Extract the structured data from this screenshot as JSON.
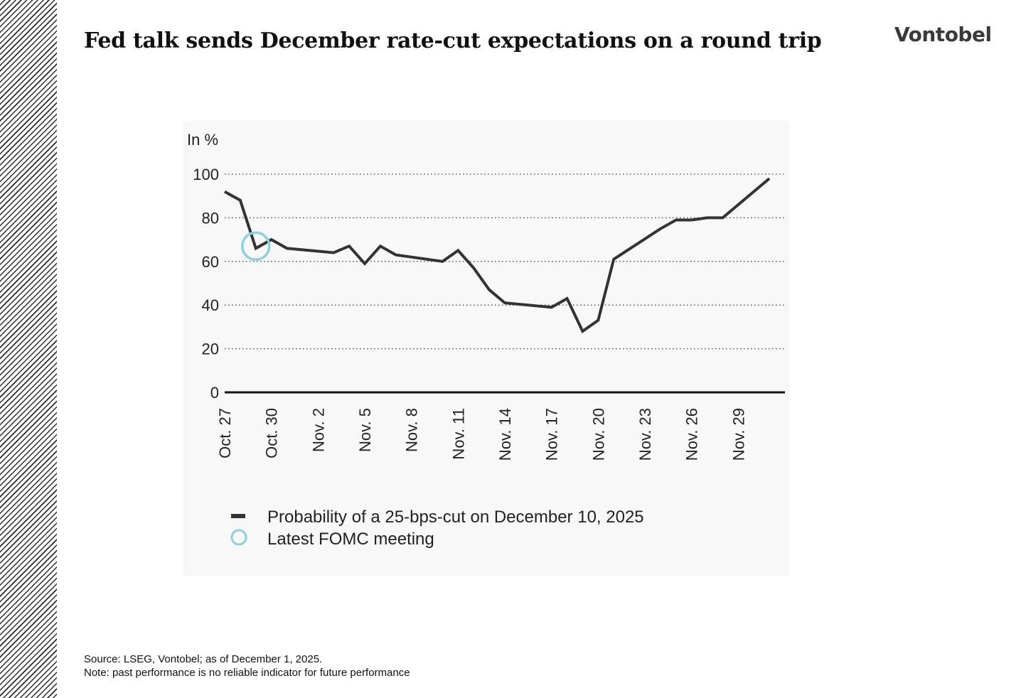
{
  "header": {
    "title": "Fed talk sends December rate-cut expectations on a round trip",
    "logo": "Vontobel"
  },
  "footer": {
    "source": "Source: LSEG, Vontobel; as of December 1, 2025.",
    "note": "Note: past performance is no reliable indicator for future performance"
  },
  "colors": {
    "line": "#333333",
    "marker": "#8fcfe0",
    "grid": "#555555",
    "axis": "#111111",
    "stripes": "#2a2a2a"
  },
  "chart_data": {
    "type": "line",
    "title": "",
    "xlabel": "",
    "ylabel": "In %",
    "ylim": [
      0,
      100
    ],
    "yticks": [
      0,
      20,
      40,
      60,
      80,
      100
    ],
    "x_range": [
      "2025-10-27",
      "2025-12-02"
    ],
    "xticks": [
      {
        "date": "2025-10-27",
        "label": "Oct. 27"
      },
      {
        "date": "2025-10-30",
        "label": "Oct. 30"
      },
      {
        "date": "2025-11-02",
        "label": "Nov. 2"
      },
      {
        "date": "2025-11-05",
        "label": "Nov. 5"
      },
      {
        "date": "2025-11-08",
        "label": "Nov. 8"
      },
      {
        "date": "2025-11-11",
        "label": "Nov. 11"
      },
      {
        "date": "2025-11-14",
        "label": "Nov. 14"
      },
      {
        "date": "2025-11-17",
        "label": "Nov. 17"
      },
      {
        "date": "2025-11-20",
        "label": "Nov. 20"
      },
      {
        "date": "2025-11-23",
        "label": "Nov. 23"
      },
      {
        "date": "2025-11-26",
        "label": "Nov. 26"
      },
      {
        "date": "2025-11-29",
        "label": "Nov. 29"
      }
    ],
    "grid": "horizontal dotted",
    "legend": "bottom-left",
    "series": [
      {
        "name": "Probability of a 25-bps-cut on December 10, 2025",
        "x": [
          "2025-10-27",
          "2025-10-28",
          "2025-10-29",
          "2025-10-30",
          "2025-10-31",
          "2025-11-03",
          "2025-11-04",
          "2025-11-05",
          "2025-11-06",
          "2025-11-07",
          "2025-11-10",
          "2025-11-11",
          "2025-11-12",
          "2025-11-13",
          "2025-11-14",
          "2025-11-17",
          "2025-11-18",
          "2025-11-19",
          "2025-11-20",
          "2025-11-21",
          "2025-11-24",
          "2025-11-25",
          "2025-11-26",
          "2025-11-27",
          "2025-11-28",
          "2025-12-01"
        ],
        "values": [
          92,
          88,
          66,
          70,
          66,
          64,
          67,
          59,
          67,
          63,
          60,
          65,
          57,
          47,
          41,
          39,
          43,
          28,
          33,
          61,
          75,
          79,
          79,
          80,
          80,
          98
        ]
      }
    ],
    "annotations": [
      {
        "type": "circle",
        "label": "Latest FOMC meeting",
        "date": "2025-10-29",
        "value": 67
      }
    ]
  }
}
